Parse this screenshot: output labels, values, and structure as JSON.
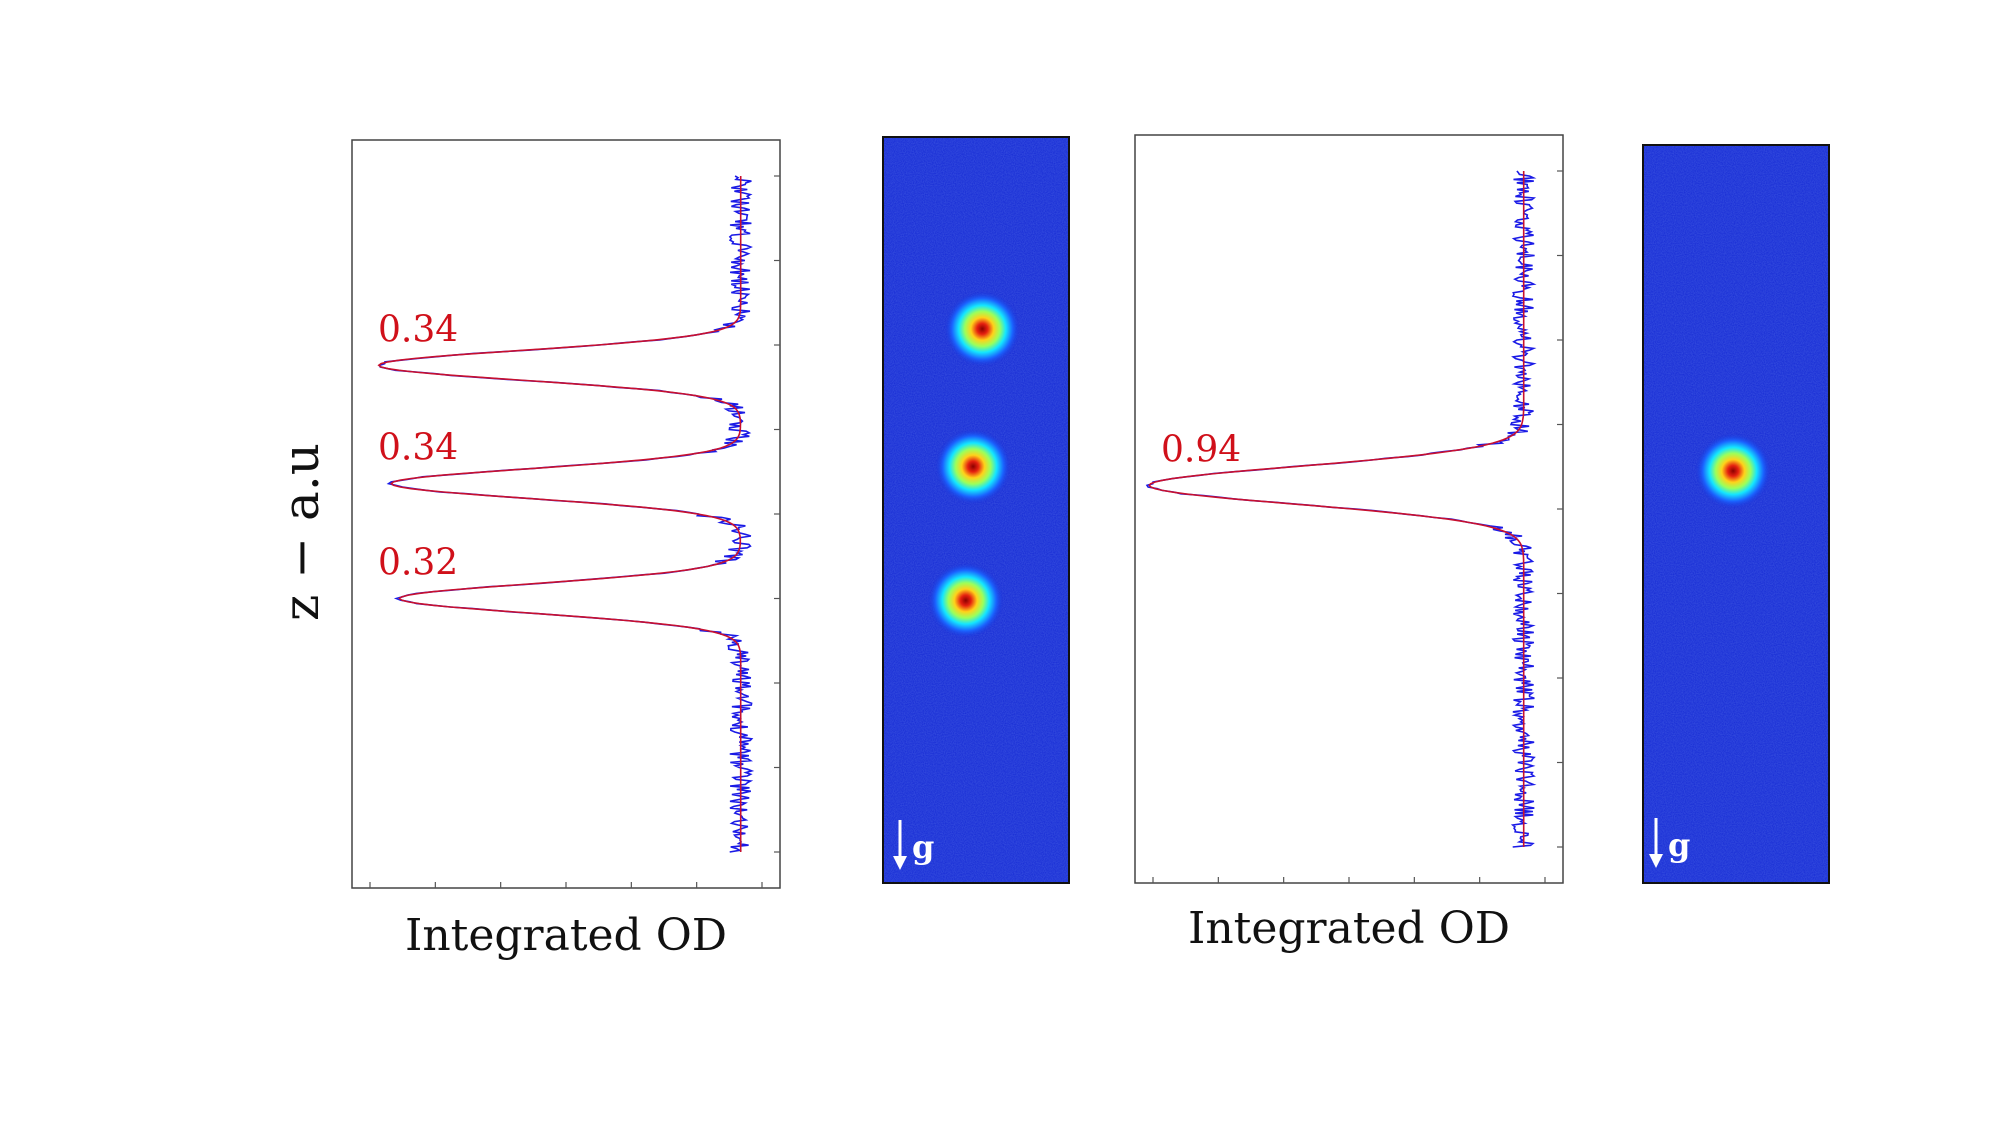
{
  "figure": {
    "ylabel": "z − a.u",
    "fit_color": "#c8102e",
    "data_color": "#1a1ae6",
    "label_color": "#d0101a"
  },
  "chart_data": [
    {
      "type": "line",
      "xlabel": "Integrated OD",
      "ylabel": "z − a.u",
      "xlim": [
        0,
        1
      ],
      "ylim": [
        0,
        1
      ],
      "x_axis_reversed": true,
      "grid": false,
      "baseline": 0.92,
      "series": [
        {
          "role": "data",
          "noise": 0.012
        },
        {
          "role": "fit"
        }
      ],
      "peaks": [
        {
          "z": 0.72,
          "depth": 0.87,
          "width": 0.022
        },
        {
          "z": 0.545,
          "depth": 0.84,
          "width": 0.022
        },
        {
          "z": 0.375,
          "depth": 0.82,
          "width": 0.022
        }
      ],
      "annotations": [
        {
          "text": "0.34",
          "z": 0.72
        },
        {
          "text": "0.34",
          "z": 0.545
        },
        {
          "text": "0.32",
          "z": 0.375
        }
      ]
    },
    {
      "type": "line",
      "xlabel": "Integrated OD",
      "ylabel": "",
      "xlim": [
        0,
        1
      ],
      "ylim": [
        0,
        1
      ],
      "x_axis_reversed": true,
      "grid": false,
      "baseline": 0.92,
      "series": [
        {
          "role": "data",
          "noise": 0.012
        },
        {
          "role": "fit"
        }
      ],
      "peaks": [
        {
          "z": 0.535,
          "depth": 0.9,
          "width": 0.028
        }
      ],
      "annotations": [
        {
          "text": "0.94",
          "z": 0.535
        }
      ]
    },
    {
      "type": "heatmap",
      "colormap": "jet",
      "gravity_label": "g",
      "spots": [
        {
          "x": 0.48,
          "z": 0.73
        },
        {
          "x": 0.43,
          "z": 0.545
        },
        {
          "x": 0.39,
          "z": 0.365
        }
      ]
    },
    {
      "type": "heatmap",
      "colormap": "jet",
      "gravity_label": "g",
      "spots": [
        {
          "x": 0.43,
          "z": 0.545
        }
      ]
    }
  ]
}
